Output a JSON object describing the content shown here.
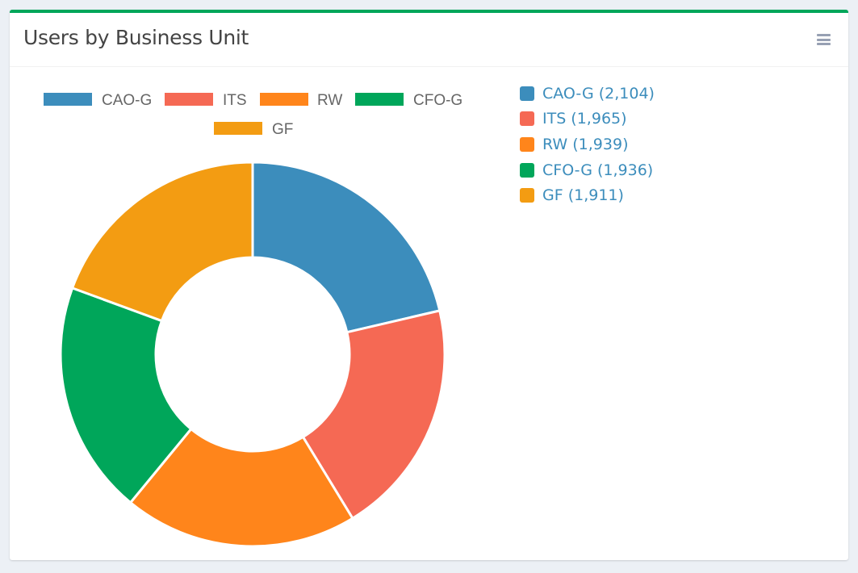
{
  "header": {
    "title": "Users by Business Unit",
    "menu_icon": "hamburger-menu-icon"
  },
  "colors": {
    "header_accent": "#00a65a",
    "link_text": "#3c8dbc"
  },
  "chart_data": {
    "type": "pie",
    "variant": "doughnut",
    "legend_position": "top",
    "categories": [
      "CAO-G",
      "ITS",
      "RW",
      "CFO-G",
      "GF"
    ],
    "values": [
      2104,
      1965,
      1939,
      1936,
      1911
    ],
    "colors": [
      "#3c8dbc",
      "#f56954",
      "#ff851b",
      "#00a65a",
      "#f39c12"
    ]
  },
  "side_legend": [
    {
      "label": "CAO-G (2,104)",
      "color": "#3c8dbc"
    },
    {
      "label": "ITS (1,965)",
      "color": "#f56954"
    },
    {
      "label": "RW (1,939)",
      "color": "#ff851b"
    },
    {
      "label": "CFO-G (1,936)",
      "color": "#00a65a"
    },
    {
      "label": "GF (1,911)",
      "color": "#f39c12"
    }
  ]
}
